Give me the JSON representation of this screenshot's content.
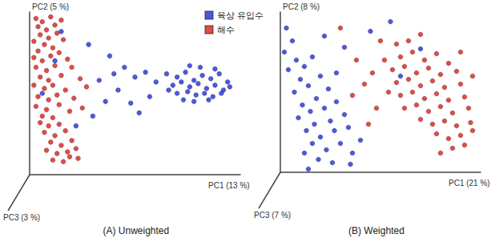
{
  "chart_data": [
    {
      "type": "scatter",
      "title": "(A) Unweighted",
      "xlabel": "PC1 (13 %)",
      "ylabel": "PC2 (5 %)",
      "zlabel": "PC3 (3 %)",
      "xlim": [
        0,
        100
      ],
      "ylim": [
        0,
        100
      ],
      "tick_labels": false,
      "grid": false,
      "legend": "top",
      "series": [
        {
          "name": "육상 유입수",
          "color": "#1f2fd6",
          "values": [
            [
              65,
              62
            ],
            [
              70,
              60
            ],
            [
              74,
              63
            ],
            [
              78,
              58
            ],
            [
              82,
              61
            ],
            [
              86,
              59
            ],
            [
              90,
              62
            ],
            [
              94,
              57
            ],
            [
              68,
              55
            ],
            [
              72,
              57
            ],
            [
              76,
              54
            ],
            [
              80,
              56
            ],
            [
              84,
              53
            ],
            [
              88,
              55
            ],
            [
              92,
              52
            ],
            [
              70,
              50
            ],
            [
              75,
              51
            ],
            [
              79,
              49
            ],
            [
              83,
              50
            ],
            [
              87,
              48
            ],
            [
              91,
              50
            ],
            [
              73,
              46
            ],
            [
              78,
              45
            ],
            [
              85,
              46
            ],
            [
              81,
              66
            ],
            [
              76,
              67
            ],
            [
              88,
              65
            ],
            [
              66,
              52
            ],
            [
              95,
              54
            ],
            [
              28,
              80
            ],
            [
              38,
              73
            ],
            [
              45,
              66
            ],
            [
              50,
              60
            ],
            [
              55,
              63
            ],
            [
              33,
              58
            ],
            [
              42,
              52
            ],
            [
              57,
              48
            ],
            [
              48,
              44
            ],
            [
              36,
              45
            ],
            [
              60,
              57
            ],
            [
              52,
              38
            ],
            [
              30,
              36
            ],
            [
              40,
              62
            ],
            [
              22,
              30
            ],
            [
              12,
              70
            ],
            [
              6,
              50
            ],
            [
              15,
              88
            ]
          ]
        },
        {
          "name": "해수",
          "color": "#d6201c",
          "values": [
            [
              3,
              96
            ],
            [
              6,
              94
            ],
            [
              10,
              97
            ],
            [
              4,
              91
            ],
            [
              8,
              89
            ],
            [
              12,
              92
            ],
            [
              15,
              95
            ],
            [
              5,
              86
            ],
            [
              9,
              84
            ],
            [
              13,
              87
            ],
            [
              2,
              82
            ],
            [
              7,
              80
            ],
            [
              11,
              78
            ],
            [
              16,
              83
            ],
            [
              4,
              76
            ],
            [
              14,
              75
            ],
            [
              2,
              72
            ],
            [
              6,
              70
            ],
            [
              10,
              73
            ],
            [
              18,
              71
            ],
            [
              3,
              66
            ],
            [
              8,
              64
            ],
            [
              12,
              67
            ],
            [
              20,
              66
            ],
            [
              5,
              60
            ],
            [
              9,
              58
            ],
            [
              15,
              61
            ],
            [
              24,
              59
            ],
            [
              2,
              55
            ],
            [
              7,
              53
            ],
            [
              11,
              55
            ],
            [
              17,
              52
            ],
            [
              27,
              54
            ],
            [
              4,
              48
            ],
            [
              9,
              46
            ],
            [
              13,
              49
            ],
            [
              21,
              47
            ],
            [
              3,
              42
            ],
            [
              8,
              40
            ],
            [
              14,
              43
            ],
            [
              19,
              39
            ],
            [
              6,
              36
            ],
            [
              11,
              35
            ],
            [
              25,
              41
            ],
            [
              5,
              32
            ],
            [
              9,
              30
            ],
            [
              14,
              31
            ],
            [
              7,
              26
            ],
            [
              12,
              24
            ],
            [
              17,
              27
            ],
            [
              10,
              20
            ],
            [
              15,
              18
            ],
            [
              20,
              21
            ],
            [
              8,
              15
            ],
            [
              13,
              13
            ],
            [
              18,
              14
            ],
            [
              22,
              16
            ],
            [
              11,
              9
            ],
            [
              16,
              8
            ],
            [
              19,
              11
            ],
            [
              23,
              10
            ]
          ]
        }
      ]
    },
    {
      "type": "scatter",
      "title": "(B) Weighted",
      "xlabel": "PC1 (21 %)",
      "ylabel": "PC2 (8 %)",
      "zlabel": "PC3 (7 %)",
      "xlim": [
        0,
        100
      ],
      "ylim": [
        0,
        100
      ],
      "tick_labels": false,
      "grid": false,
      "legend": "top",
      "series": [
        {
          "name": "육상 유입수",
          "color": "#1f2fd6",
          "values": [
            [
              3,
              90
            ],
            [
              6,
              82
            ],
            [
              2,
              75
            ],
            [
              8,
              70
            ],
            [
              4,
              64
            ],
            [
              12,
              66
            ],
            [
              16,
              72
            ],
            [
              10,
              58
            ],
            [
              14,
              54
            ],
            [
              20,
              60
            ],
            [
              7,
              50
            ],
            [
              18,
              46
            ],
            [
              24,
              52
            ],
            [
              11,
              42
            ],
            [
              15,
              38
            ],
            [
              22,
              40
            ],
            [
              28,
              44
            ],
            [
              9,
              34
            ],
            [
              17,
              30
            ],
            [
              25,
              32
            ],
            [
              13,
              26
            ],
            [
              20,
              22
            ],
            [
              27,
              26
            ],
            [
              32,
              36
            ],
            [
              16,
              18
            ],
            [
              23,
              14
            ],
            [
              30,
              18
            ],
            [
              19,
              8
            ],
            [
              26,
              6
            ],
            [
              12,
              12
            ],
            [
              34,
              28
            ],
            [
              36,
              12
            ],
            [
              40,
              20
            ],
            [
              28,
              62
            ],
            [
              32,
              78
            ],
            [
              22,
              85
            ],
            [
              45,
              88
            ],
            [
              60,
              60
            ],
            [
              70,
              77
            ],
            [
              55,
              94
            ],
            [
              35,
              5
            ],
            [
              14,
              2
            ]
          ]
        },
        {
          "name": "해수",
          "color": "#d6201c",
          "values": [
            [
              60,
              72
            ],
            [
              66,
              75
            ],
            [
              72,
              70
            ],
            [
              78,
              74
            ],
            [
              84,
              68
            ],
            [
              56,
              64
            ],
            [
              62,
              66
            ],
            [
              68,
              62
            ],
            [
              74,
              65
            ],
            [
              80,
              61
            ],
            [
              88,
              63
            ],
            [
              58,
              56
            ],
            [
              64,
              58
            ],
            [
              70,
              54
            ],
            [
              76,
              57
            ],
            [
              82,
              53
            ],
            [
              90,
              55
            ],
            [
              60,
              48
            ],
            [
              66,
              50
            ],
            [
              72,
              46
            ],
            [
              78,
              49
            ],
            [
              84,
              45
            ],
            [
              92,
              47
            ],
            [
              62,
              40
            ],
            [
              68,
              42
            ],
            [
              74,
              38
            ],
            [
              80,
              41
            ],
            [
              86,
              37
            ],
            [
              94,
              40
            ],
            [
              70,
              33
            ],
            [
              76,
              30
            ],
            [
              82,
              32
            ],
            [
              88,
              29
            ],
            [
              95,
              31
            ],
            [
              78,
              24
            ],
            [
              84,
              21
            ],
            [
              90,
              23
            ],
            [
              96,
              26
            ],
            [
              86,
              15
            ],
            [
              92,
              17
            ],
            [
              80,
              12
            ],
            [
              64,
              82
            ],
            [
              70,
              86
            ],
            [
              58,
              80
            ],
            [
              52,
              70
            ],
            [
              54,
              50
            ],
            [
              90,
              75
            ],
            [
              96,
              60
            ],
            [
              46,
              62
            ],
            [
              42,
              55
            ],
            [
              38,
              70
            ],
            [
              48,
              40
            ],
            [
              30,
              90
            ],
            [
              44,
              30
            ],
            [
              36,
              48
            ],
            [
              50,
              82
            ]
          ]
        }
      ]
    }
  ]
}
